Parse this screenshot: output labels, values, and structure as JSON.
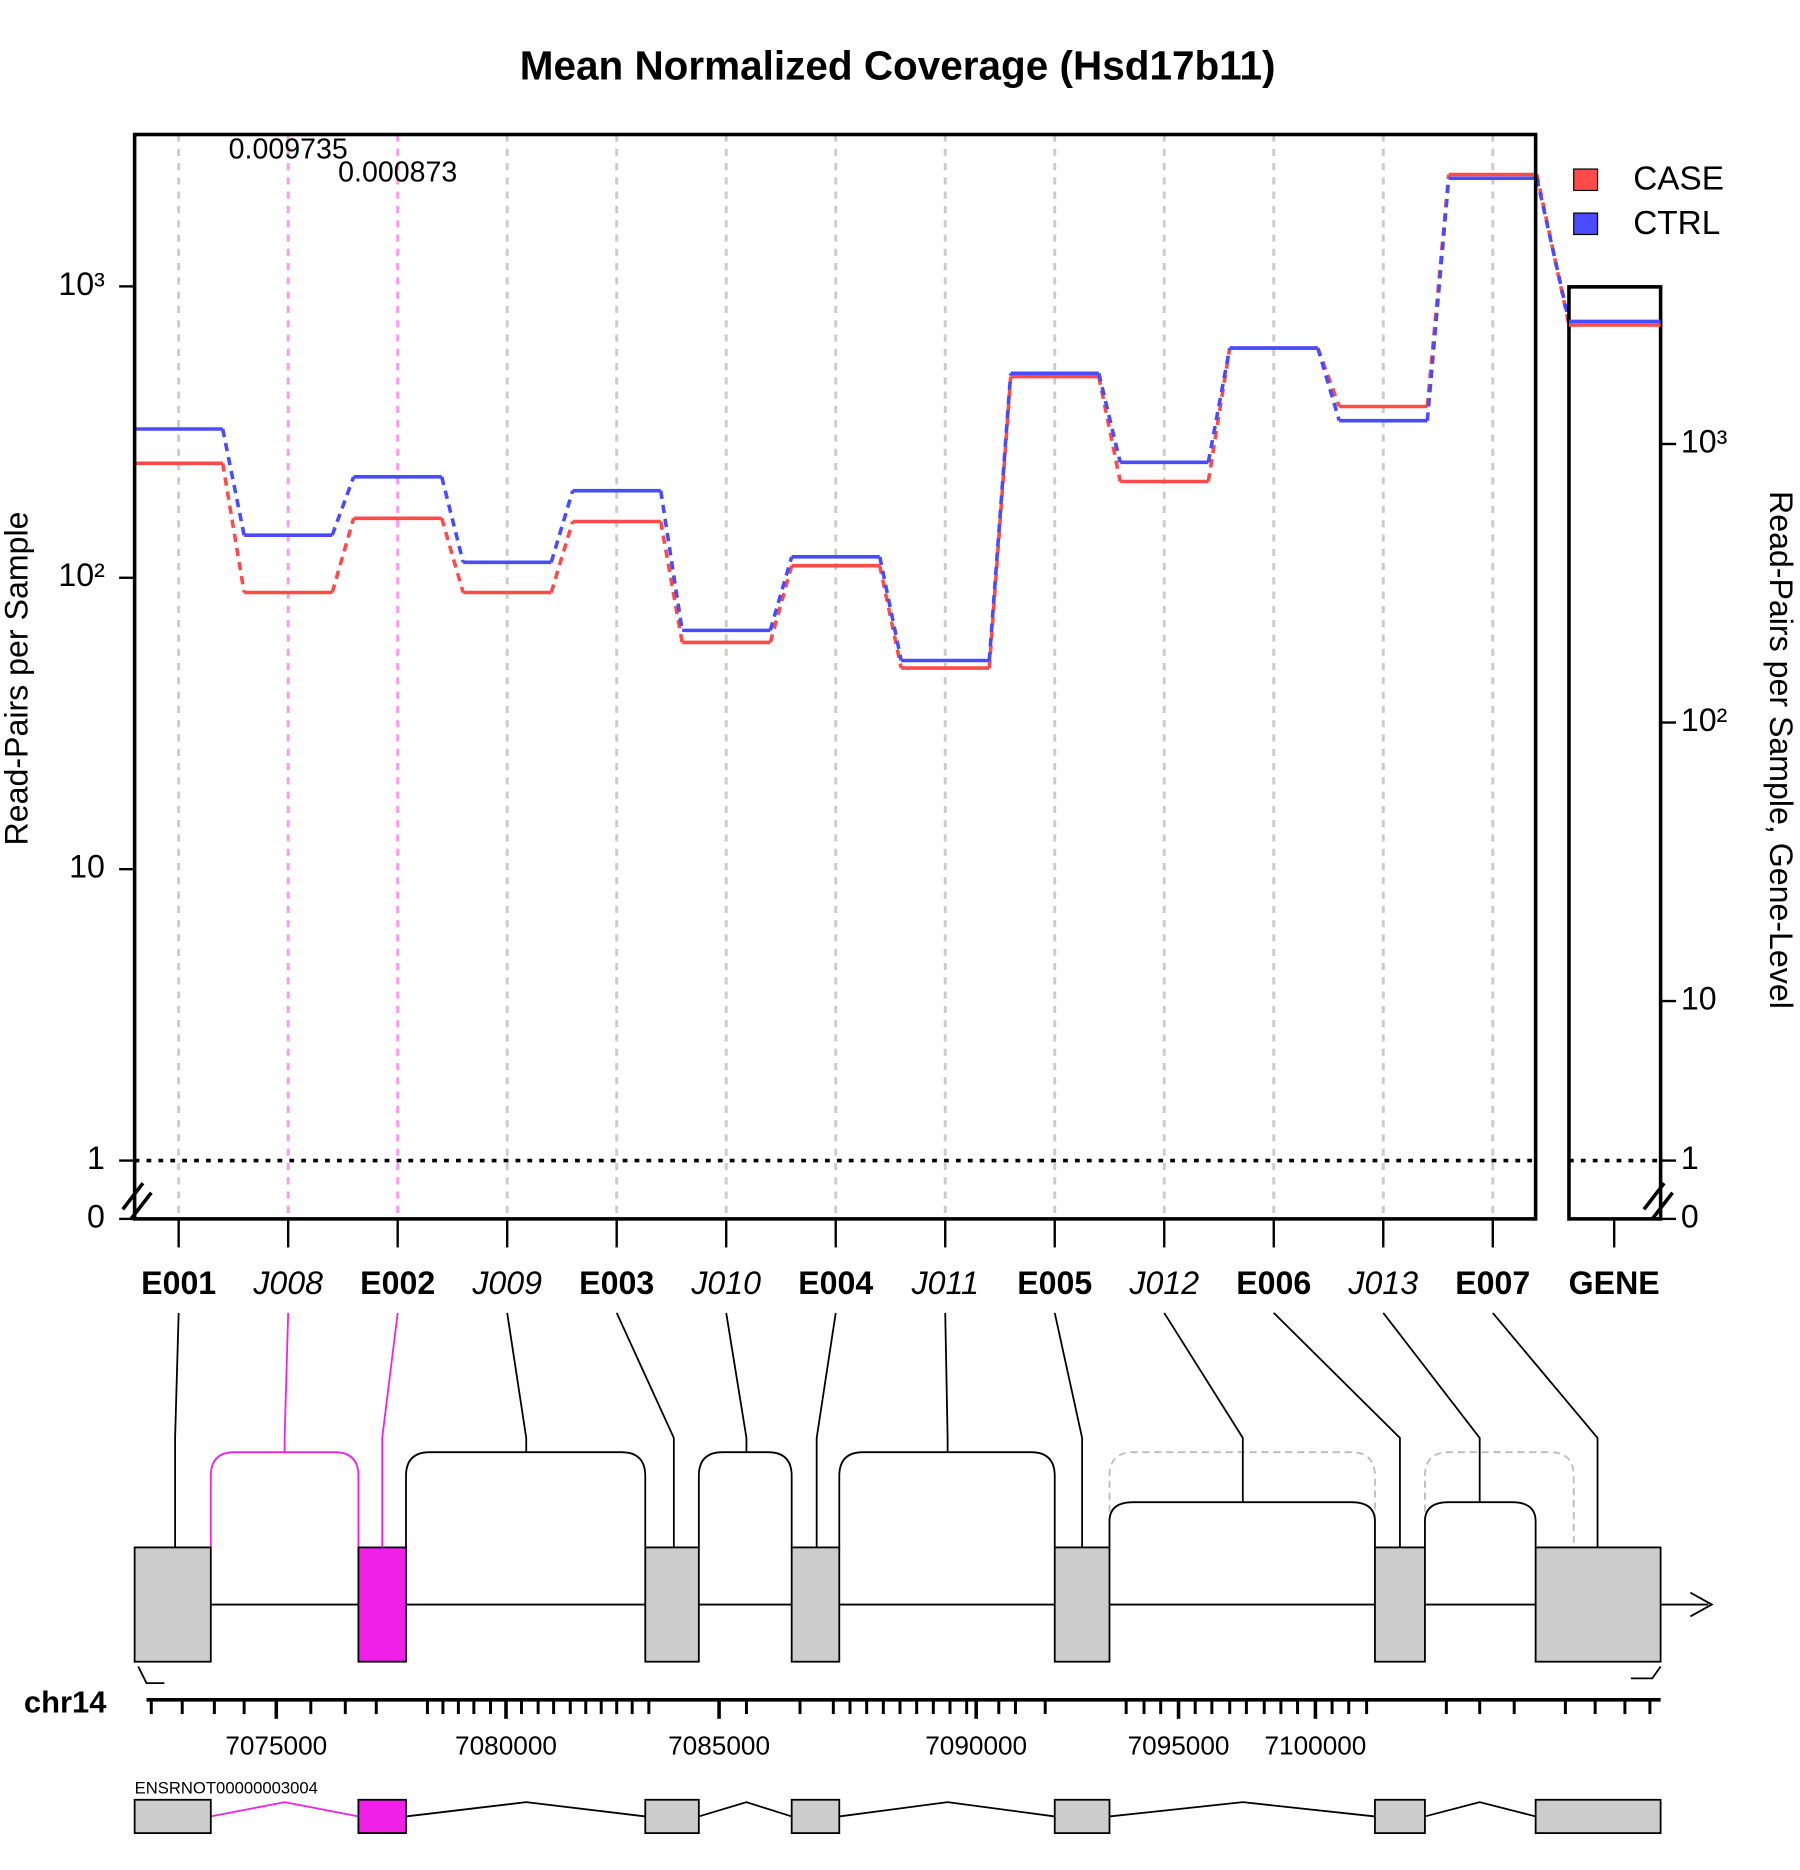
{
  "chart_data": {
    "type": "line",
    "title": "Mean Normalized Coverage (Hsd17b11)",
    "y_label": "Read-Pairs per Sample",
    "y2_label": "Read-Pairs per Sample, Gene-Level",
    "log_scale": true,
    "grid": true,
    "legend": "right",
    "categories": [
      "E001",
      "J008",
      "E002",
      "J009",
      "E003",
      "J010",
      "E004",
      "J011",
      "E005",
      "J012",
      "E006",
      "J013",
      "E007"
    ],
    "gene_category": "GENE",
    "series": [
      {
        "name": "CASE",
        "color": "#ff4a4a",
        "values": [
          247,
          89,
          160,
          89,
          156,
          60,
          110,
          49,
          490,
          214,
          614,
          387,
          2420
        ],
        "gene_value": 2675
      },
      {
        "name": "CTRL",
        "color": "#4a4aff",
        "values": [
          324,
          140,
          222,
          113,
          199,
          66,
          118,
          52,
          503,
          249,
          614,
          346,
          2350
        ],
        "gene_value": 2755,
        "axis_note": null
      }
    ],
    "ylim": [
      1,
      3320
    ],
    "yticks": [
      0,
      1,
      10,
      {
        "value": 100,
        "label": "10²"
      },
      {
        "value": 1000,
        "label": "10³"
      }
    ],
    "y2lim": [
      10,
      3665
    ],
    "y2ticks": [
      0,
      1,
      10,
      {
        "value": 100,
        "label": "10²"
      },
      {
        "value": 1000,
        "label": "10³"
      }
    ],
    "annotations": [
      {
        "feature": "J008",
        "label": "0.009735"
      },
      {
        "feature": "E002",
        "label": "0.000873"
      }
    ],
    "annotation_color": "#ff99f0"
  },
  "gene_model": {
    "chrom": "chr14",
    "coord_ticks": [
      7075000,
      7080000,
      7085000,
      7090000,
      7095000,
      7100000
    ],
    "transcript": "ENSRNOT00000003004"
  }
}
